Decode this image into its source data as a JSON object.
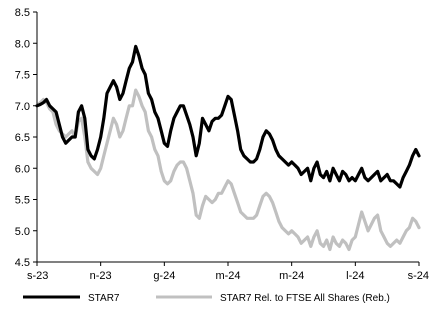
{
  "chart_data": {
    "type": "line",
    "title": "",
    "xlabel": "",
    "ylabel": "",
    "ylim": [
      4.5,
      8.5
    ],
    "yticks": [
      "4.5",
      "5.0",
      "5.5",
      "6.0",
      "6.5",
      "7.0",
      "7.5",
      "8.0",
      "8.5"
    ],
    "xticks": [
      "s-23",
      "n-23",
      "g-24",
      "m-24",
      "m-24",
      "l-24",
      "s-24"
    ],
    "legend_position": "bottom",
    "grid": false,
    "x": [
      0,
      1,
      2,
      3,
      4,
      5,
      6,
      7,
      8,
      9,
      10,
      11,
      12,
      13,
      14,
      15,
      16,
      17,
      18,
      19,
      20,
      21,
      22,
      23,
      24,
      25,
      26,
      27,
      28,
      29,
      30,
      31,
      32,
      33,
      34,
      35,
      36,
      37,
      38,
      39,
      40,
      41,
      42,
      43,
      44,
      45,
      46,
      47,
      48,
      49,
      50,
      51,
      52,
      53,
      54,
      55,
      56,
      57,
      58,
      59,
      60,
      61,
      62,
      63,
      64,
      65,
      66,
      67,
      68,
      69,
      70,
      71,
      72,
      73,
      74,
      75,
      76,
      77,
      78,
      79,
      80,
      81,
      82,
      83,
      84,
      85,
      86,
      87,
      88,
      89,
      90,
      91,
      92,
      93,
      94,
      95,
      96,
      97,
      98,
      99,
      100,
      101,
      102,
      103,
      104,
      105,
      106,
      107,
      108,
      109,
      110,
      111,
      112,
      113,
      114,
      115,
      116,
      117,
      118,
      119,
      120
    ],
    "series": [
      {
        "name": "STAR7",
        "color": "#000000",
        "values": [
          7.0,
          7.02,
          7.05,
          7.1,
          7.0,
          6.95,
          6.9,
          6.7,
          6.5,
          6.4,
          6.45,
          6.5,
          6.5,
          6.9,
          7.0,
          6.8,
          6.3,
          6.2,
          6.15,
          6.3,
          6.5,
          6.8,
          7.2,
          7.3,
          7.4,
          7.3,
          7.1,
          7.2,
          7.4,
          7.6,
          7.7,
          7.95,
          7.8,
          7.6,
          7.5,
          7.2,
          7.1,
          6.9,
          6.8,
          6.6,
          6.4,
          6.35,
          6.6,
          6.8,
          6.9,
          7.0,
          7.0,
          6.85,
          6.7,
          6.5,
          6.2,
          6.4,
          6.8,
          6.7,
          6.6,
          6.75,
          6.8,
          6.8,
          6.85,
          7.0,
          7.15,
          7.1,
          6.85,
          6.6,
          6.3,
          6.2,
          6.15,
          6.1,
          6.1,
          6.15,
          6.3,
          6.5,
          6.6,
          6.55,
          6.45,
          6.3,
          6.2,
          6.15,
          6.1,
          6.05,
          6.1,
          6.05,
          6.0,
          5.9,
          5.95,
          6.0,
          5.8,
          6.0,
          6.1,
          5.9,
          5.85,
          5.95,
          5.8,
          6.0,
          5.9,
          5.8,
          5.95,
          5.9,
          5.8,
          5.85,
          5.8,
          5.9,
          6.0,
          5.85,
          5.8,
          5.85,
          5.9,
          5.95,
          5.8,
          5.85,
          5.9,
          5.8,
          5.8,
          5.75,
          5.7,
          5.85,
          5.95,
          6.05,
          6.2,
          6.3,
          6.2
        ]
      },
      {
        "name": "STAR7 Rel. to FTSE All Shares (Reb.)",
        "color": "#c0c0c0",
        "values": [
          7.0,
          7.05,
          7.1,
          7.05,
          6.95,
          6.9,
          6.7,
          6.6,
          6.55,
          6.5,
          6.55,
          6.6,
          6.5,
          6.75,
          6.8,
          6.5,
          6.1,
          6.0,
          5.95,
          5.9,
          6.0,
          6.2,
          6.4,
          6.6,
          6.8,
          6.7,
          6.5,
          6.6,
          6.8,
          7.0,
          7.0,
          7.25,
          7.15,
          7.0,
          6.9,
          6.6,
          6.5,
          6.3,
          6.2,
          5.95,
          5.8,
          5.75,
          5.8,
          5.95,
          6.05,
          6.1,
          6.1,
          6.0,
          5.8,
          5.6,
          5.25,
          5.2,
          5.4,
          5.55,
          5.5,
          5.45,
          5.5,
          5.6,
          5.6,
          5.7,
          5.8,
          5.75,
          5.6,
          5.45,
          5.3,
          5.25,
          5.2,
          5.2,
          5.2,
          5.25,
          5.4,
          5.55,
          5.6,
          5.55,
          5.45,
          5.3,
          5.15,
          5.05,
          5.0,
          4.95,
          5.0,
          4.95,
          4.9,
          4.8,
          4.85,
          4.9,
          4.75,
          4.9,
          5.0,
          4.8,
          4.75,
          4.85,
          4.7,
          4.9,
          4.8,
          4.75,
          4.85,
          4.8,
          4.7,
          4.85,
          4.9,
          5.1,
          5.3,
          5.15,
          5.0,
          5.1,
          5.2,
          5.25,
          5.0,
          4.9,
          4.8,
          4.75,
          4.8,
          4.85,
          4.8,
          4.9,
          5.0,
          5.05,
          5.2,
          5.15,
          5.05
        ]
      }
    ]
  }
}
